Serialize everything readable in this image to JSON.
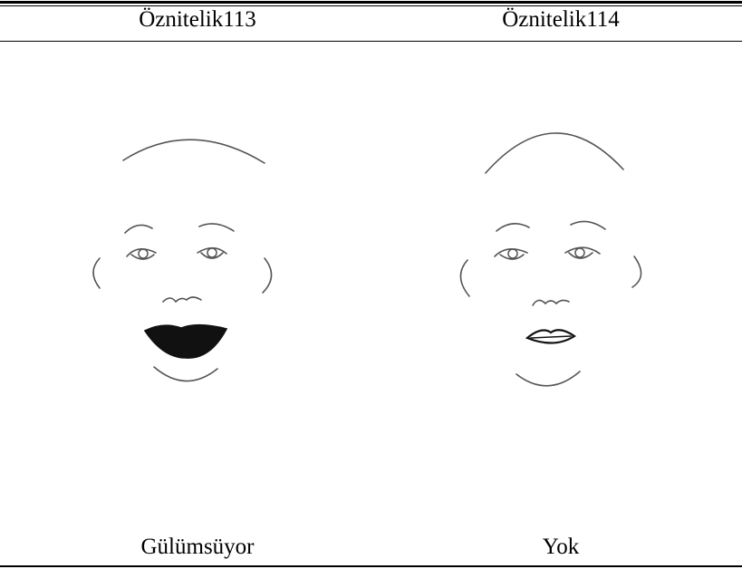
{
  "table": {
    "header": [
      "Öznitelik113",
      "Öznitelik114"
    ],
    "rows": [
      [
        "Gülümsüyor",
        "Yok"
      ]
    ]
  }
}
